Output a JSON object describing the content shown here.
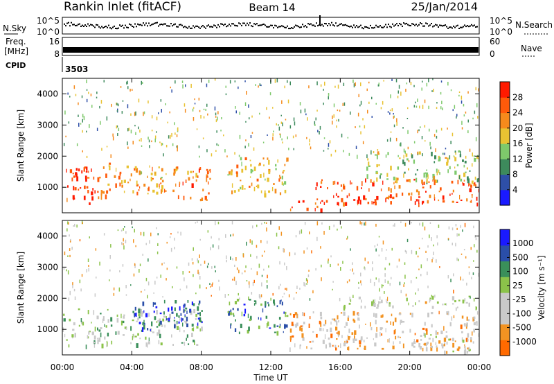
{
  "header": {
    "station": "Rankin Inlet (fitACF)",
    "beam": "Beam 14",
    "date": "25/Jan/2014"
  },
  "noise_panel": {
    "left_label": "N.Sky",
    "right_label": "N.Search",
    "left_ticks": [
      "10^5",
      "10^0"
    ],
    "right_ticks": [
      "10^5",
      "10^0"
    ]
  },
  "freq_panel": {
    "left_label_1": "Freq.",
    "left_label_2": "[MHz]",
    "right_label": "Nave",
    "left_ticks": [
      "16",
      "8"
    ],
    "right_ticks": [
      "60",
      "0"
    ]
  },
  "cpid_panel": {
    "label": "CPID",
    "value": "3503"
  },
  "power_panel": {
    "ylabel": "Slant Range [km]",
    "yticks": [
      "4000",
      "3000",
      "2000",
      "1000"
    ],
    "colorbar_label": "Power [dB]",
    "colorbar_ticks": [
      "28",
      "24",
      "20",
      "16",
      "12",
      "8",
      "4"
    ]
  },
  "velocity_panel": {
    "ylabel": "Slant Range [km]",
    "yticks": [
      "4000",
      "3000",
      "2000",
      "1000"
    ],
    "colorbar_label": "Velocity [m s⁻¹]",
    "colorbar_ticks": [
      "1000",
      "500",
      "100",
      "25",
      "-25",
      "-100",
      "-500",
      "-1000"
    ]
  },
  "xaxis": {
    "label": "Time UT",
    "ticks": [
      "00:00",
      "04:00",
      "08:00",
      "12:00",
      "16:00",
      "20:00",
      "00:00"
    ]
  },
  "colors": {
    "power_scale": [
      "#1a1aff",
      "#2e4fa8",
      "#3d8a5c",
      "#7ec96b",
      "#e8c232",
      "#f58a1c",
      "#ff5a0a",
      "#ff1a00"
    ],
    "velocity_scale": [
      "#ff1a00",
      "#ff6a00",
      "#f29322",
      "#c9c9c9",
      "#c9c9c9",
      "#8bc34a",
      "#3a8f5a",
      "#2a4ea8",
      "#1a1aff"
    ]
  },
  "chart_data": [
    {
      "type": "heatmap",
      "title": "Power",
      "xlabel": "Time UT",
      "ylabel": "Slant Range [km]",
      "xlim": [
        0,
        24
      ],
      "ylim": [
        180,
        4500
      ],
      "color_range": [
        0,
        30
      ],
      "colorbar_ticks": [
        28,
        24,
        20,
        16,
        12,
        8,
        4
      ],
      "colorbar_label": "Power [dB]",
      "bands": [
        {
          "x": [
            0,
            2.5
          ],
          "y": [
            500,
            1700
          ],
          "value": 26
        },
        {
          "x": [
            2.5,
            6.5
          ],
          "y": [
            800,
            1800
          ],
          "value": 20
        },
        {
          "x": [
            6.5,
            8.5
          ],
          "y": [
            600,
            1700
          ],
          "value": 22
        },
        {
          "x": [
            9.5,
            13
          ],
          "y": [
            800,
            2000
          ],
          "value": 18
        },
        {
          "x": [
            13,
            15
          ],
          "y": [
            300,
            600
          ],
          "value": 26
        },
        {
          "x": [
            14.5,
            24
          ],
          "y": [
            500,
            1300
          ],
          "value": 24
        },
        {
          "x": [
            17.5,
            24
          ],
          "y": [
            1200,
            2200
          ],
          "value": 14
        }
      ]
    },
    {
      "type": "heatmap",
      "title": "Velocity",
      "xlabel": "Time UT",
      "ylabel": "Slant Range [km]",
      "xlim": [
        0,
        24
      ],
      "ylim": [
        180,
        4500
      ],
      "color_range": [
        -1000,
        1000
      ],
      "colorbar_ticks": [
        1000,
        500,
        100,
        25,
        -25,
        -100,
        -500,
        -1000
      ],
      "colorbar_label": "Velocity [m s⁻¹]",
      "bands": [
        {
          "x": [
            0,
            8
          ],
          "y": [
            500,
            1700
          ],
          "value": 150
        },
        {
          "x": [
            4,
            8
          ],
          "y": [
            1000,
            2000
          ],
          "value": 700
        },
        {
          "x": [
            9.5,
            13
          ],
          "y": [
            900,
            2000
          ],
          "value": 500
        },
        {
          "x": [
            13,
            24
          ],
          "y": [
            400,
            1600
          ],
          "value": -300
        },
        {
          "x": [
            16,
            24
          ],
          "y": [
            1700,
            2100
          ],
          "value": 0
        },
        {
          "x": [
            20,
            24
          ],
          "y": [
            300,
            900
          ],
          "value": -120
        }
      ]
    }
  ]
}
